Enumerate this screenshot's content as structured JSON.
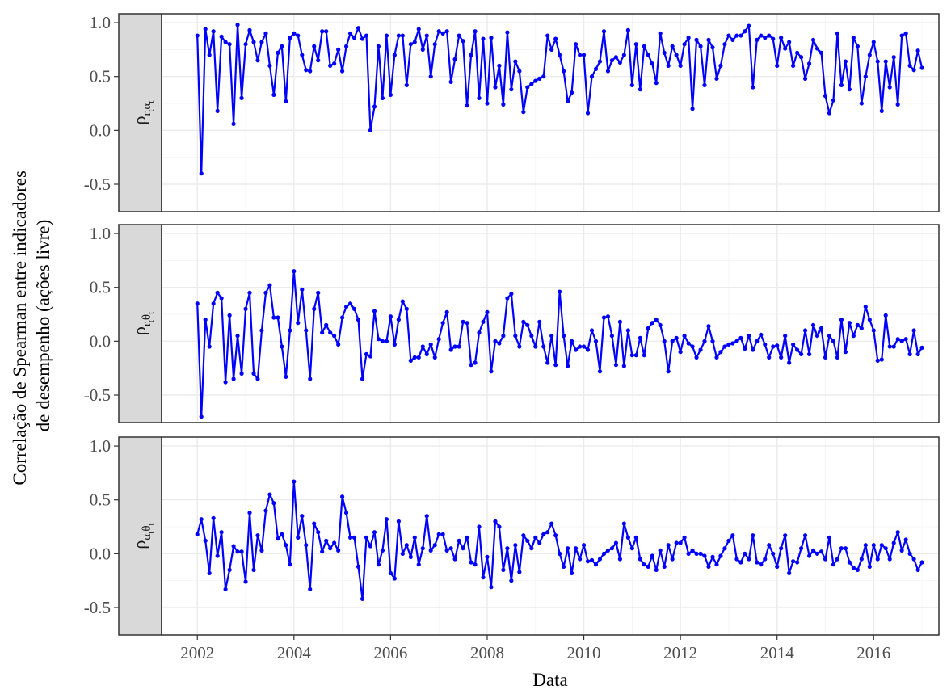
{
  "chart_data": {
    "type": "line",
    "y_label": [
      "Correlação de Spearman entre indicadores",
      "de desempenho (ações livre)"
    ],
    "x_label": "Data",
    "color": "#0000ff",
    "grid": true,
    "minor_grid": true,
    "xlim": [
      2001.26,
      2017.35
    ],
    "xticks": [
      2002,
      2004,
      2006,
      2008,
      2010,
      2012,
      2014,
      2016
    ],
    "ylim": [
      -0.755,
      1.083
    ],
    "yticks": [
      -0.5,
      {
        "value": 0,
        "label": "0.0"
      },
      0.5,
      {
        "value": 1,
        "label": "1.0"
      }
    ],
    "x": [
      2002.0,
      2002.083,
      2002.167,
      2002.25,
      2002.333,
      2002.417,
      2002.5,
      2002.583,
      2002.667,
      2002.75,
      2002.833,
      2002.917,
      2003.0,
      2003.083,
      2003.167,
      2003.25,
      2003.333,
      2003.417,
      2003.5,
      2003.583,
      2003.667,
      2003.75,
      2003.833,
      2003.917,
      2004.0,
      2004.083,
      2004.167,
      2004.25,
      2004.333,
      2004.417,
      2004.5,
      2004.583,
      2004.667,
      2004.75,
      2004.833,
      2004.917,
      2005.0,
      2005.083,
      2005.167,
      2005.25,
      2005.333,
      2005.417,
      2005.5,
      2005.583,
      2005.667,
      2005.75,
      2005.833,
      2005.917,
      2006.0,
      2006.083,
      2006.167,
      2006.25,
      2006.333,
      2006.417,
      2006.5,
      2006.583,
      2006.667,
      2006.75,
      2006.833,
      2006.917,
      2007.0,
      2007.083,
      2007.167,
      2007.25,
      2007.333,
      2007.417,
      2007.5,
      2007.583,
      2007.667,
      2007.75,
      2007.833,
      2007.917,
      2008.0,
      2008.083,
      2008.167,
      2008.25,
      2008.333,
      2008.417,
      2008.5,
      2008.583,
      2008.667,
      2008.75,
      2008.833,
      2008.917,
      2009.0,
      2009.083,
      2009.167,
      2009.25,
      2009.333,
      2009.417,
      2009.5,
      2009.583,
      2009.667,
      2009.75,
      2009.833,
      2009.917,
      2010.0,
      2010.083,
      2010.167,
      2010.25,
      2010.333,
      2010.417,
      2010.5,
      2010.583,
      2010.667,
      2010.75,
      2010.833,
      2010.917,
      2011.0,
      2011.083,
      2011.167,
      2011.25,
      2011.333,
      2011.417,
      2011.5,
      2011.583,
      2011.667,
      2011.75,
      2011.833,
      2011.917,
      2012.0,
      2012.083,
      2012.167,
      2012.25,
      2012.333,
      2012.417,
      2012.5,
      2012.583,
      2012.667,
      2012.75,
      2012.833,
      2012.917,
      2013.0,
      2013.083,
      2013.167,
      2013.25,
      2013.333,
      2013.417,
      2013.5,
      2013.583,
      2013.667,
      2013.75,
      2013.833,
      2013.917,
      2014.0,
      2014.083,
      2014.167,
      2014.25,
      2014.333,
      2014.417,
      2014.5,
      2014.583,
      2014.667,
      2014.75,
      2014.833,
      2014.917,
      2015.0,
      2015.083,
      2015.167,
      2015.25,
      2015.333,
      2015.417,
      2015.5,
      2015.583,
      2015.667,
      2015.75,
      2015.833,
      2015.917,
      2016.0,
      2016.083,
      2016.167,
      2016.25,
      2016.333,
      2016.417,
      2016.5,
      2016.583,
      2016.667,
      2016.75,
      2016.833,
      2016.917,
      2017.0
    ],
    "series": [
      {
        "strip": [
          "ρ",
          "r",
          "t",
          "α",
          "t"
        ],
        "values": [
          0.88,
          -0.4,
          0.94,
          0.7,
          0.92,
          0.18,
          0.87,
          0.82,
          0.8,
          0.06,
          0.98,
          0.3,
          0.8,
          0.93,
          0.82,
          0.65,
          0.82,
          0.9,
          0.6,
          0.33,
          0.72,
          0.78,
          0.27,
          0.86,
          0.9,
          0.88,
          0.7,
          0.56,
          0.55,
          0.78,
          0.65,
          0.92,
          0.92,
          0.6,
          0.62,
          0.75,
          0.55,
          0.78,
          0.9,
          0.86,
          0.95,
          0.85,
          0.88,
          0.0,
          0.22,
          0.78,
          0.3,
          0.88,
          0.33,
          0.7,
          0.88,
          0.88,
          0.42,
          0.8,
          0.82,
          0.94,
          0.75,
          0.88,
          0.5,
          0.8,
          0.92,
          0.9,
          0.92,
          0.45,
          0.66,
          0.88,
          0.83,
          0.23,
          0.7,
          0.92,
          0.3,
          0.85,
          0.25,
          0.86,
          0.4,
          0.6,
          0.24,
          0.91,
          0.38,
          0.64,
          0.55,
          0.17,
          0.4,
          0.43,
          0.46,
          0.48,
          0.5,
          0.88,
          0.75,
          0.85,
          0.7,
          0.55,
          0.27,
          0.35,
          0.8,
          0.7,
          0.7,
          0.16,
          0.5,
          0.57,
          0.64,
          0.92,
          0.55,
          0.65,
          0.68,
          0.63,
          0.7,
          0.93,
          0.42,
          0.8,
          0.38,
          0.78,
          0.7,
          0.62,
          0.44,
          0.9,
          0.72,
          0.6,
          0.78,
          0.7,
          0.6,
          0.8,
          0.86,
          0.2,
          0.84,
          0.78,
          0.42,
          0.84,
          0.77,
          0.48,
          0.6,
          0.8,
          0.88,
          0.84,
          0.88,
          0.88,
          0.92,
          0.97,
          0.4,
          0.84,
          0.88,
          0.86,
          0.88,
          0.85,
          0.6,
          0.86,
          0.76,
          0.82,
          0.6,
          0.72,
          0.68,
          0.48,
          0.62,
          0.84,
          0.76,
          0.72,
          0.32,
          0.16,
          0.28,
          0.9,
          0.42,
          0.64,
          0.38,
          0.86,
          0.78,
          0.25,
          0.5,
          0.7,
          0.82,
          0.64,
          0.18,
          0.64,
          0.4,
          0.68,
          0.24,
          0.88,
          0.9,
          0.6,
          0.56,
          0.74,
          0.58
        ]
      },
      {
        "strip": [
          "ρ",
          "r",
          "t",
          "θ",
          "t"
        ],
        "values": [
          0.35,
          -0.7,
          0.2,
          -0.05,
          0.35,
          0.45,
          0.4,
          -0.38,
          0.24,
          -0.35,
          0.05,
          -0.3,
          0.3,
          0.45,
          -0.3,
          -0.35,
          0.1,
          0.45,
          0.52,
          0.22,
          0.22,
          -0.05,
          -0.33,
          0.1,
          0.65,
          0.17,
          0.48,
          0.1,
          -0.35,
          0.3,
          0.45,
          0.08,
          0.15,
          0.08,
          0.05,
          -0.03,
          0.22,
          0.32,
          0.35,
          0.3,
          0.2,
          -0.35,
          -0.12,
          -0.14,
          0.28,
          0.02,
          0.0,
          0.0,
          0.23,
          -0.03,
          0.2,
          0.37,
          0.3,
          -0.18,
          -0.15,
          -0.15,
          -0.05,
          -0.12,
          -0.03,
          -0.15,
          0.02,
          0.17,
          0.27,
          -0.08,
          -0.05,
          -0.05,
          0.18,
          0.17,
          -0.22,
          -0.2,
          0.08,
          0.18,
          0.27,
          -0.28,
          0.0,
          -0.02,
          0.05,
          0.4,
          0.44,
          0.05,
          -0.05,
          0.18,
          0.15,
          0.05,
          -0.05,
          0.18,
          -0.05,
          -0.2,
          0.05,
          -0.22,
          0.46,
          0.05,
          -0.23,
          0.0,
          -0.08,
          -0.05,
          -0.05,
          -0.08,
          0.1,
          0.0,
          -0.28,
          0.22,
          0.23,
          0.05,
          -0.22,
          0.18,
          -0.23,
          0.1,
          -0.13,
          -0.13,
          0.03,
          -0.13,
          0.12,
          0.17,
          0.2,
          0.15,
          0.0,
          -0.28,
          0.0,
          0.03,
          -0.1,
          0.05,
          -0.02,
          -0.05,
          -0.15,
          -0.08,
          0.0,
          0.14,
          0.0,
          -0.15,
          -0.1,
          -0.05,
          -0.03,
          -0.02,
          0.0,
          0.03,
          -0.07,
          0.05,
          -0.08,
          0.0,
          0.06,
          -0.03,
          -0.15,
          -0.05,
          -0.04,
          -0.15,
          0.05,
          -0.2,
          -0.03,
          -0.08,
          -0.12,
          0.1,
          -0.12,
          0.15,
          0.05,
          0.12,
          -0.15,
          0.05,
          0.0,
          -0.15,
          0.2,
          -0.1,
          0.17,
          0.05,
          0.15,
          0.12,
          0.32,
          0.2,
          0.1,
          -0.18,
          -0.17,
          0.24,
          -0.05,
          -0.05,
          0.02,
          0.0,
          0.02,
          -0.12,
          0.1,
          -0.12,
          -0.06
        ]
      },
      {
        "strip": [
          "ρ",
          "α",
          "t",
          "θ",
          "t"
        ],
        "values": [
          0.18,
          0.32,
          0.12,
          -0.18,
          0.33,
          -0.02,
          0.2,
          -0.33,
          -0.15,
          0.07,
          0.02,
          0.02,
          -0.26,
          0.38,
          -0.15,
          0.17,
          0.03,
          0.4,
          0.55,
          0.47,
          0.14,
          0.18,
          0.08,
          -0.1,
          0.67,
          0.15,
          0.35,
          0.08,
          -0.33,
          0.28,
          0.2,
          0.02,
          0.12,
          0.05,
          0.1,
          0.03,
          0.53,
          0.38,
          0.15,
          0.15,
          -0.12,
          -0.42,
          0.15,
          0.07,
          0.2,
          -0.1,
          0.03,
          0.32,
          -0.18,
          -0.23,
          0.3,
          0.0,
          0.08,
          -0.03,
          0.15,
          -0.1,
          0.05,
          0.35,
          0.03,
          0.08,
          0.18,
          0.18,
          0.03,
          0.05,
          -0.05,
          0.12,
          0.05,
          0.15,
          -0.08,
          -0.1,
          0.25,
          -0.22,
          -0.03,
          -0.31,
          0.3,
          0.25,
          -0.15,
          0.05,
          -0.25,
          0.08,
          -0.17,
          0.17,
          0.12,
          0.05,
          0.15,
          0.1,
          0.18,
          0.2,
          0.28,
          0.17,
          0.0,
          -0.12,
          0.05,
          -0.18,
          0.05,
          -0.05,
          0.08,
          -0.07,
          -0.06,
          -0.1,
          -0.05,
          0.0,
          0.03,
          0.05,
          0.1,
          -0.05,
          0.28,
          0.15,
          0.05,
          0.15,
          -0.05,
          -0.1,
          -0.12,
          -0.02,
          -0.15,
          0.03,
          -0.12,
          0.08,
          -0.05,
          0.1,
          0.1,
          0.15,
          0.0,
          0.03,
          0.0,
          0.0,
          -0.02,
          -0.12,
          -0.03,
          -0.1,
          -0.02,
          0.05,
          0.12,
          0.17,
          -0.05,
          -0.08,
          0.0,
          -0.05,
          0.17,
          -0.08,
          -0.1,
          -0.05,
          0.08,
          0.0,
          -0.12,
          0.05,
          0.17,
          -0.18,
          -0.07,
          -0.08,
          0.05,
          0.17,
          -0.02,
          0.03,
          0.0,
          0.02,
          -0.05,
          0.15,
          -0.1,
          -0.05,
          0.05,
          0.05,
          -0.08,
          -0.13,
          -0.15,
          -0.05,
          0.08,
          -0.12,
          0.08,
          -0.05,
          0.08,
          0.05,
          -0.05,
          0.1,
          0.2,
          0.03,
          0.13,
          0.0,
          -0.05,
          -0.15,
          -0.08
        ]
      }
    ]
  }
}
